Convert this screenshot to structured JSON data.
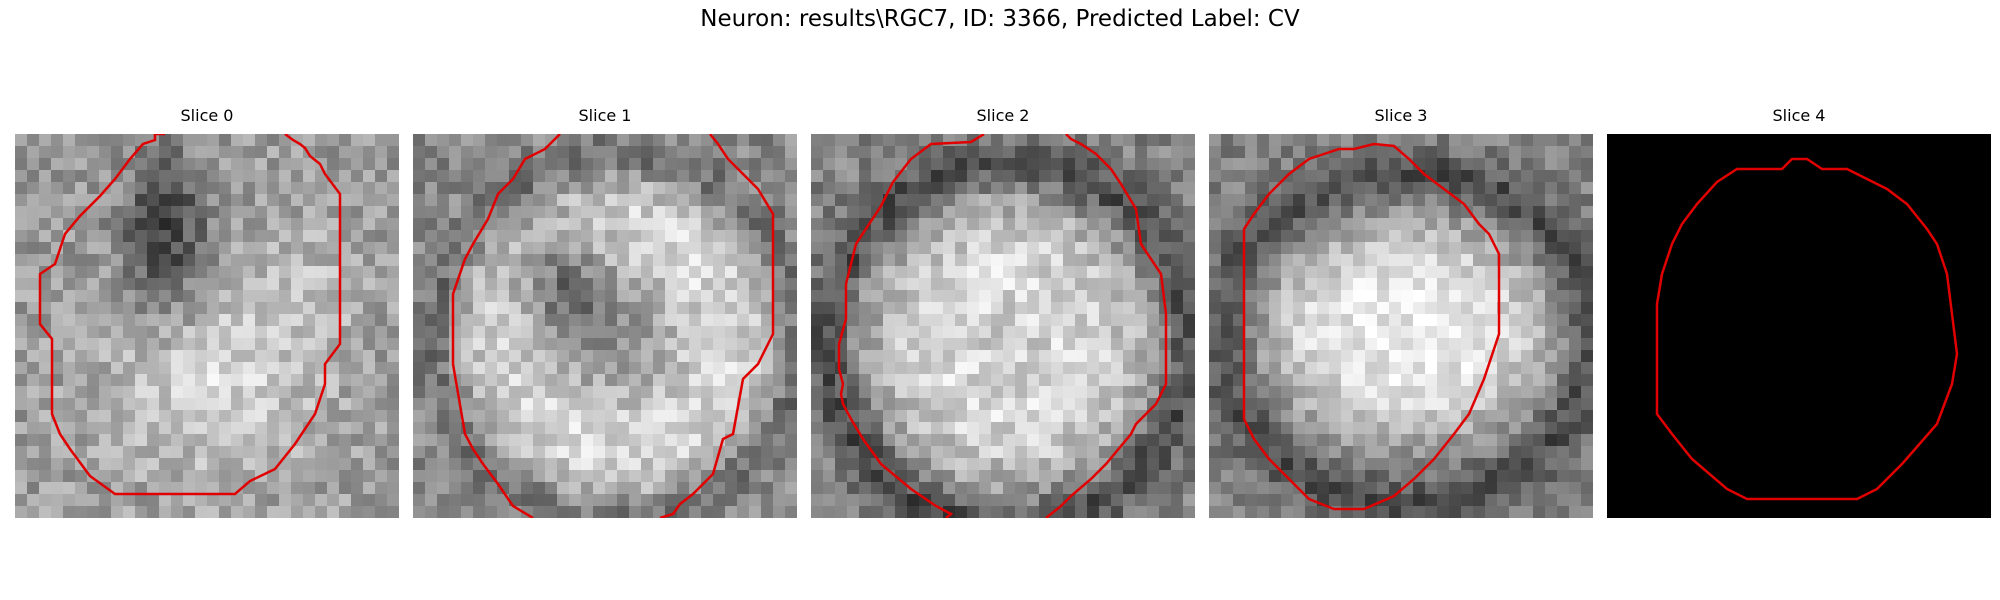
{
  "figure": {
    "title": "Neuron: results\\RGC7, ID: 3366, Predicted Label: CV"
  },
  "slices": [
    {
      "title": "Slice 0",
      "image": "grayscale-microscopy-slice-dark-nucleus-top-center",
      "overlay_color": "#e00000"
    },
    {
      "title": "Slice 1",
      "image": "grayscale-microscopy-slice-ring-cell-dark-spot",
      "overlay_color": "#e00000"
    },
    {
      "title": "Slice 2",
      "image": "grayscale-microscopy-slice-round-bright-cell",
      "overlay_color": "#e00000"
    },
    {
      "title": "Slice 3",
      "image": "grayscale-microscopy-slice-bright-oval-cell",
      "overlay_color": "#e00000"
    },
    {
      "title": "Slice 4",
      "image": "black-empty-slice",
      "overlay_color": "#e00000"
    }
  ]
}
